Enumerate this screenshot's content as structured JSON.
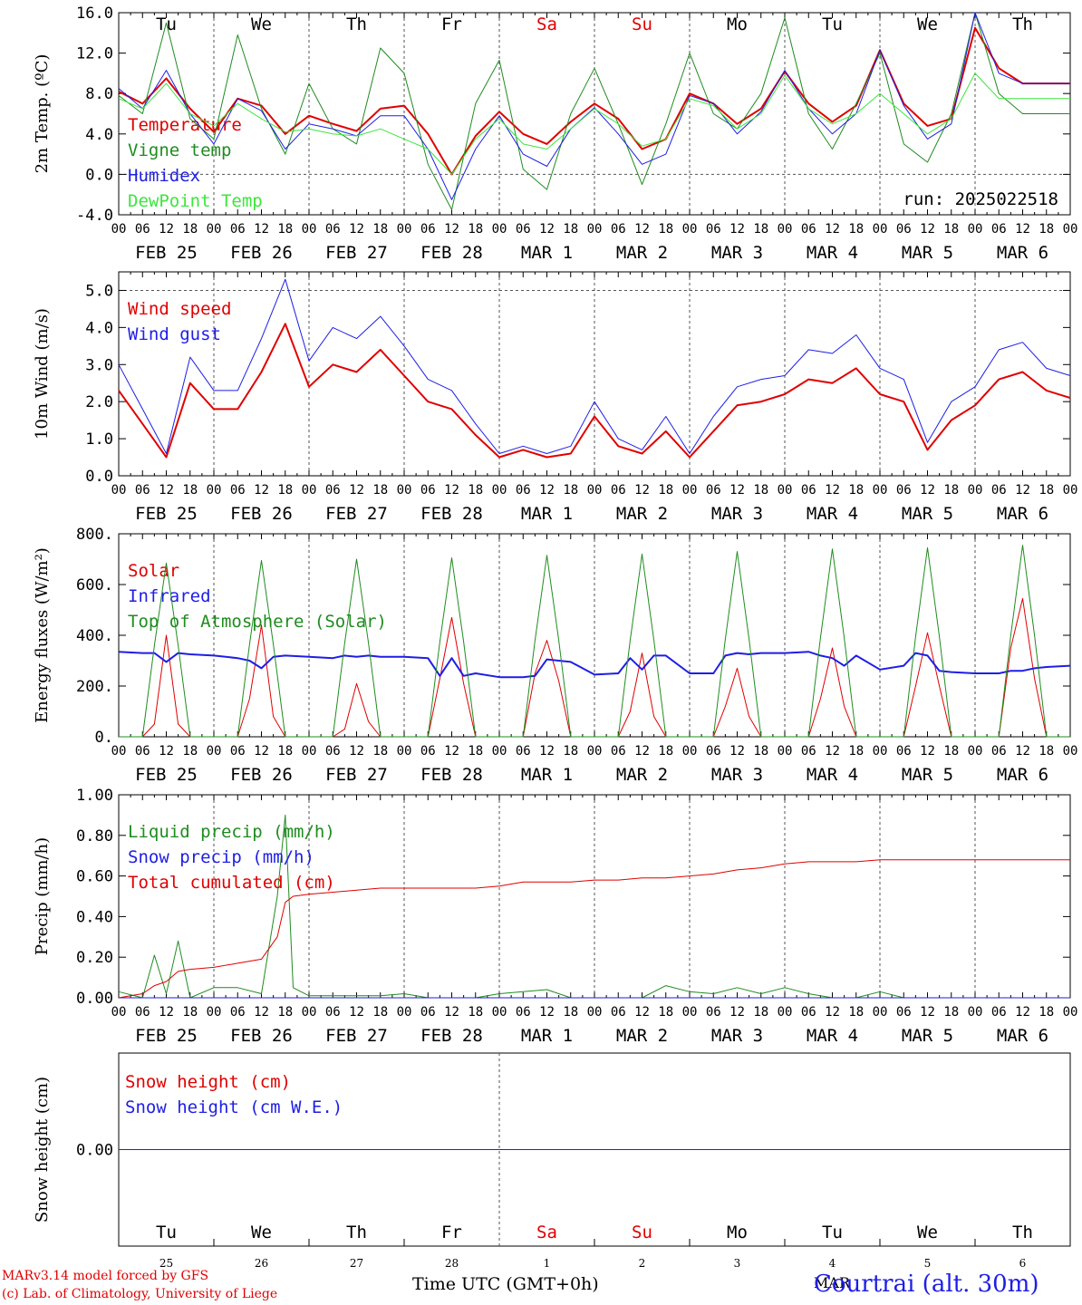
{
  "chart_data": [
    {
      "type": "line",
      "ylabel": "2m Temp. (ºC)",
      "ylim": [
        -4.0,
        16.0
      ],
      "yticks": [
        "-4.0",
        "0.0",
        "4.0",
        "8.0",
        "12.0",
        "16.0"
      ],
      "ytick_values": [
        -4,
        0,
        4,
        8,
        12,
        16
      ],
      "refline": 0,
      "day_names": [
        "Tu",
        "We",
        "Th",
        "Fr",
        "Sa",
        "Su",
        "Mo",
        "Tu",
        "We",
        "Th"
      ],
      "weekend_color": "#e00000",
      "weekend_days": [
        4,
        5
      ],
      "run_label": "run: 2025022518",
      "x_hours": [
        0,
        6,
        12,
        18,
        24,
        30,
        36,
        42,
        48,
        54,
        60,
        66,
        72,
        78,
        84,
        90,
        96,
        102,
        108,
        114,
        120,
        126,
        132,
        138,
        144,
        150,
        156,
        162,
        168,
        174,
        180,
        186,
        192,
        198,
        204,
        210,
        216,
        222,
        228,
        234,
        240
      ],
      "series": [
        {
          "name": "Temperature",
          "color": "#e00000",
          "width": 2,
          "values": [
            8.2,
            7.0,
            9.5,
            6.5,
            4.2,
            7.5,
            6.8,
            4.0,
            5.8,
            5.0,
            4.3,
            6.5,
            6.8,
            4.0,
            0.0,
            3.8,
            6.2,
            4.0,
            3.0,
            5.2,
            7.0,
            5.5,
            2.5,
            3.5,
            8.0,
            7.0,
            5.0,
            6.5,
            10.2,
            7.0,
            5.2,
            6.8,
            12.3,
            7.0,
            4.8,
            5.5,
            14.5,
            10.5,
            9.0,
            9.0,
            9.0
          ]
        },
        {
          "name": "Vigne temp",
          "color": "#1f8c1f",
          "width": 1,
          "values": [
            7.8,
            6.0,
            15.0,
            5.5,
            3.5,
            13.8,
            6.5,
            2.0,
            9.0,
            4.5,
            3.0,
            12.5,
            10.0,
            1.0,
            -3.5,
            7.0,
            11.3,
            0.5,
            -1.5,
            6.0,
            10.5,
            5.0,
            -1.0,
            5.0,
            12.0,
            6.0,
            4.5,
            8.0,
            15.5,
            6.0,
            2.5,
            7.0,
            12.0,
            3.0,
            1.2,
            6.0,
            16.0,
            8.0,
            6.0,
            6.0,
            6.0
          ]
        },
        {
          "name": "Humidex",
          "color": "#1e1ee6",
          "width": 1,
          "values": [
            8.5,
            6.5,
            10.3,
            6.0,
            3.0,
            7.5,
            6.3,
            2.5,
            5.0,
            4.5,
            3.8,
            5.8,
            5.8,
            2.5,
            -2.5,
            2.5,
            5.8,
            2.0,
            0.8,
            4.5,
            6.6,
            4.0,
            1.0,
            2.0,
            7.8,
            7.0,
            4.0,
            6.2,
            10.3,
            6.5,
            4.0,
            6.0,
            12.3,
            6.8,
            3.5,
            5.0,
            16.0,
            10.0,
            9.0,
            9.0,
            9.0
          ]
        },
        {
          "name": "DewPoint Temp",
          "color": "#3ce63c",
          "width": 1,
          "values": [
            7.5,
            6.5,
            9.0,
            6.0,
            4.8,
            7.0,
            5.5,
            4.2,
            4.5,
            4.0,
            3.8,
            4.5,
            3.5,
            2.5,
            0.0,
            3.5,
            5.5,
            3.0,
            2.5,
            4.5,
            6.5,
            5.0,
            2.8,
            3.5,
            7.5,
            6.8,
            4.5,
            6.0,
            9.8,
            6.5,
            5.0,
            6.0,
            8.0,
            6.0,
            4.0,
            5.5,
            10.0,
            7.5,
            7.5,
            7.5,
            7.5
          ]
        }
      ]
    },
    {
      "type": "line",
      "ylabel": "10m Wind (m/s)",
      "ylim": [
        0.0,
        5.5
      ],
      "yticks": [
        "0.0",
        "1.0",
        "2.0",
        "3.0",
        "4.0",
        "5.0"
      ],
      "ytick_values": [
        0,
        1,
        2,
        3,
        4,
        5
      ],
      "refline": 5.0,
      "x_hours": [
        0,
        6,
        12,
        18,
        24,
        30,
        36,
        42,
        48,
        54,
        60,
        66,
        72,
        78,
        84,
        90,
        96,
        102,
        108,
        114,
        120,
        126,
        132,
        138,
        144,
        150,
        156,
        162,
        168,
        174,
        180,
        186,
        192,
        198,
        204,
        210,
        216,
        222,
        228,
        234,
        240
      ],
      "series": [
        {
          "name": "Wind speed",
          "color": "#e00000",
          "width": 2,
          "values": [
            2.3,
            1.4,
            0.5,
            2.5,
            1.8,
            1.8,
            2.8,
            4.1,
            2.4,
            3.0,
            2.8,
            3.4,
            2.7,
            2.0,
            1.8,
            1.1,
            0.5,
            0.7,
            0.5,
            0.6,
            1.6,
            0.8,
            0.6,
            1.2,
            0.5,
            1.2,
            1.9,
            2.0,
            2.2,
            2.6,
            2.5,
            2.9,
            2.2,
            2.0,
            0.7,
            1.5,
            1.9,
            2.6,
            2.8,
            2.3,
            2.1
          ]
        },
        {
          "name": "Wind gust",
          "color": "#1e1ee6",
          "width": 1,
          "values": [
            3.0,
            1.8,
            0.6,
            3.2,
            2.3,
            2.3,
            3.7,
            5.3,
            3.1,
            4.0,
            3.7,
            4.3,
            3.5,
            2.6,
            2.3,
            1.4,
            0.6,
            0.8,
            0.6,
            0.8,
            2.0,
            1.0,
            0.7,
            1.6,
            0.6,
            1.6,
            2.4,
            2.6,
            2.7,
            3.4,
            3.3,
            3.8,
            2.9,
            2.6,
            0.9,
            2.0,
            2.4,
            3.4,
            3.6,
            2.9,
            2.7
          ]
        }
      ]
    },
    {
      "type": "line",
      "ylabel": "Energy fluxes (W/m²)",
      "ylim": [
        0,
        800
      ],
      "yticks": [
        "0.",
        "200.",
        "400.",
        "600.",
        "800."
      ],
      "ytick_values": [
        0,
        200,
        400,
        600,
        800
      ],
      "x_hours": [
        0,
        6,
        9,
        12,
        15,
        18,
        24,
        30,
        33,
        36,
        39,
        42,
        48,
        54,
        57,
        60,
        63,
        66,
        72,
        78,
        81,
        84,
        87,
        90,
        96,
        102,
        105,
        108,
        111,
        114,
        120,
        126,
        129,
        132,
        135,
        138,
        144,
        150,
        153,
        156,
        159,
        162,
        168,
        174,
        177,
        180,
        183,
        186,
        192,
        198,
        201,
        204,
        207,
        210,
        216,
        222,
        225,
        228,
        231,
        234,
        240
      ],
      "series": [
        {
          "name": "Solar",
          "color": "#e00000",
          "width": 1,
          "values": [
            0,
            0,
            50,
            400,
            50,
            0,
            0,
            0,
            150,
            440,
            80,
            0,
            0,
            0,
            30,
            210,
            60,
            0,
            0,
            0,
            230,
            470,
            210,
            0,
            0,
            0,
            250,
            380,
            220,
            0,
            0,
            0,
            100,
            330,
            80,
            0,
            0,
            0,
            120,
            270,
            80,
            0,
            0,
            0,
            150,
            350,
            120,
            0,
            0,
            0,
            200,
            410,
            200,
            0,
            0,
            0,
            350,
            545,
            230,
            0,
            0
          ]
        },
        {
          "name": "Infrared",
          "color": "#1e1ee6",
          "width": 2,
          "values": [
            335,
            330,
            330,
            295,
            330,
            325,
            320,
            310,
            300,
            270,
            315,
            320,
            315,
            310,
            320,
            315,
            320,
            315,
            315,
            310,
            240,
            310,
            240,
            250,
            235,
            235,
            240,
            305,
            300,
            295,
            245,
            250,
            310,
            265,
            320,
            320,
            250,
            250,
            320,
            330,
            325,
            330,
            330,
            335,
            320,
            310,
            280,
            320,
            265,
            280,
            330,
            320,
            260,
            255,
            250,
            250,
            260,
            260,
            270,
            275,
            280
          ]
        },
        {
          "name": "Top of Atmosphere (Solar)",
          "color": "#1f8c1f",
          "width": 1,
          "values": [
            0,
            0,
            360,
            685,
            360,
            0,
            0,
            0,
            365,
            695,
            365,
            0,
            0,
            0,
            370,
            700,
            370,
            0,
            0,
            0,
            375,
            705,
            375,
            0,
            0,
            0,
            380,
            715,
            380,
            0,
            0,
            0,
            380,
            720,
            380,
            0,
            0,
            0,
            385,
            730,
            385,
            0,
            0,
            0,
            390,
            740,
            390,
            0,
            0,
            0,
            395,
            745,
            395,
            0,
            0,
            0,
            400,
            755,
            400,
            0,
            0
          ]
        }
      ]
    },
    {
      "type": "line",
      "ylabel": "Precip (mm/h)",
      "ylim": [
        0.0,
        1.0
      ],
      "yticks": [
        "0.00",
        "0.20",
        "0.40",
        "0.60",
        "0.80",
        "1.00"
      ],
      "ytick_values": [
        0,
        0.2,
        0.4,
        0.6,
        0.8,
        1.0
      ],
      "x_hours": [
        0,
        6,
        9,
        12,
        15,
        18,
        24,
        30,
        36,
        40,
        42,
        44,
        48,
        54,
        60,
        66,
        72,
        78,
        84,
        90,
        96,
        102,
        108,
        114,
        120,
        126,
        132,
        138,
        144,
        150,
        156,
        162,
        168,
        174,
        180,
        186,
        192,
        198,
        204,
        210,
        216,
        222,
        228,
        234,
        240
      ],
      "series": [
        {
          "name": "Liquid precip (mm/h)",
          "color": "#1f8c1f",
          "width": 1,
          "values": [
            0.03,
            0.0,
            0.21,
            0.02,
            0.28,
            0.0,
            0.05,
            0.05,
            0.02,
            0.5,
            0.9,
            0.05,
            0.01,
            0.01,
            0.01,
            0.01,
            0.02,
            0.0,
            0.0,
            0.0,
            0.02,
            0.03,
            0.04,
            0.0,
            0.0,
            0.0,
            0.0,
            0.06,
            0.03,
            0.02,
            0.05,
            0.02,
            0.05,
            0.02,
            0.0,
            0.0,
            0.03,
            0.0,
            0.0,
            0.0,
            0.0,
            0.0,
            0.0,
            0.0,
            0.0
          ]
        },
        {
          "name": "Snow precip (mm/h)",
          "color": "#1e1ee6",
          "width": 1,
          "values": [
            0,
            0,
            0,
            0,
            0,
            0,
            0,
            0,
            0,
            0,
            0,
            0,
            0,
            0,
            0,
            0,
            0,
            0,
            0,
            0,
            0,
            0,
            0,
            0,
            0,
            0,
            0,
            0,
            0,
            0,
            0,
            0,
            0,
            0,
            0,
            0,
            0,
            0,
            0,
            0,
            0,
            0,
            0,
            0,
            0
          ]
        },
        {
          "name": "Total cumulated (cm)",
          "color": "#e00000",
          "width": 1,
          "values": [
            0.0,
            0.02,
            0.06,
            0.08,
            0.13,
            0.14,
            0.15,
            0.17,
            0.19,
            0.3,
            0.47,
            0.5,
            0.51,
            0.52,
            0.53,
            0.54,
            0.54,
            0.54,
            0.54,
            0.54,
            0.55,
            0.57,
            0.57,
            0.57,
            0.58,
            0.58,
            0.59,
            0.59,
            0.6,
            0.61,
            0.63,
            0.64,
            0.66,
            0.67,
            0.67,
            0.67,
            0.68,
            0.68,
            0.68,
            0.68,
            0.68,
            0.68,
            0.68,
            0.68,
            0.68
          ]
        }
      ]
    },
    {
      "type": "line",
      "ylabel": "Snow height (cm)",
      "ylim": [
        -1,
        1
      ],
      "yticks": [
        "0.00"
      ],
      "ytick_values": [
        0
      ],
      "x_hours": [
        0,
        240
      ],
      "day_names": [
        "Tu",
        "We",
        "Th",
        "Fr",
        "Sa",
        "Su",
        "Mo",
        "Tu",
        "We",
        "Th"
      ],
      "day_numbers": [
        "25",
        "26",
        "27",
        "28",
        "1",
        "2",
        "3",
        "4",
        "5",
        "6"
      ],
      "series": [
        {
          "name": "Snow height (cm)",
          "color": "#e00000",
          "width": 1,
          "values": [
            0.0,
            0.0
          ]
        },
        {
          "name": "Snow height (cm W.E.)",
          "color": "#1e1ee6",
          "width": 1,
          "values": [
            0.0,
            0.0
          ]
        }
      ]
    }
  ],
  "hour_ticks": [
    "00",
    "06",
    "12",
    "18"
  ],
  "final_hour": "00",
  "date_labels": [
    "FEB 25",
    "FEB 26",
    "FEB 27",
    "FEB 28",
    "MAR  1",
    "MAR  2",
    "MAR  3",
    "MAR  4",
    "MAR  5",
    "MAR  6"
  ],
  "footer": {
    "credit1": "MARv3.14 model forced by GFS",
    "credit2": "(c) Lab. of Climatology, University of Liege",
    "xlabel": "Time UTC (GMT+0h)",
    "month": "MAR",
    "station": "Courtrai (alt. 30m)"
  }
}
